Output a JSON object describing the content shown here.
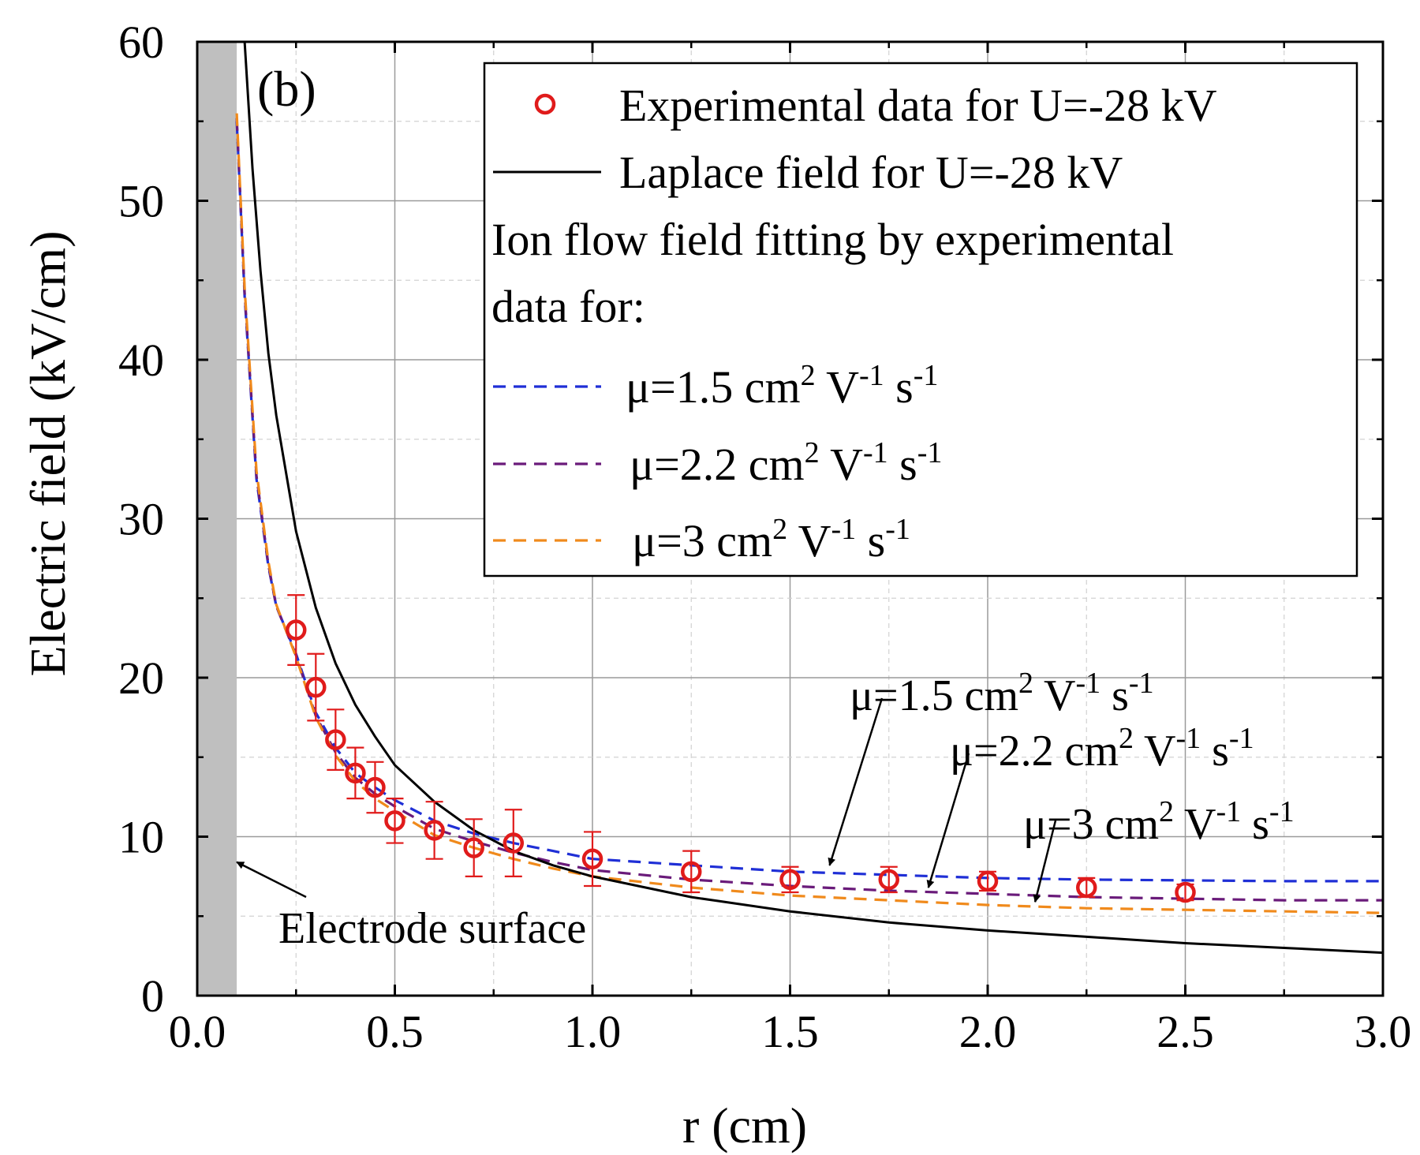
{
  "chart_data": {
    "type": "scatter",
    "panel_label": "(b)",
    "xlabel": "r (cm)",
    "ylabel": "Electric field (kV/cm)",
    "xlim": [
      0,
      3
    ],
    "ylim": [
      0,
      60
    ],
    "xticks": [
      0.0,
      0.5,
      1.0,
      1.5,
      2.0,
      2.5,
      3.0
    ],
    "xtick_labels": [
      "0.0",
      "0.5",
      "1.0",
      "1.5",
      "2.0",
      "2.5",
      "3.0"
    ],
    "yticks": [
      0,
      10,
      20,
      30,
      40,
      50,
      60
    ],
    "ytick_labels": [
      "0",
      "10",
      "20",
      "30",
      "40",
      "50",
      "60"
    ],
    "grid": true,
    "electrode_region": [
      0,
      0.1
    ],
    "experimental": {
      "name": "Experimental data for U=-28 kV",
      "color": "#e01b1b",
      "x": [
        0.25,
        0.3,
        0.35,
        0.4,
        0.45,
        0.5,
        0.6,
        0.7,
        0.8,
        1.0,
        1.25,
        1.5,
        1.75,
        2.0,
        2.25,
        2.5
      ],
      "y": [
        23.0,
        19.4,
        16.1,
        14.0,
        13.1,
        11.0,
        10.4,
        9.3,
        9.6,
        8.6,
        7.8,
        7.3,
        7.3,
        7.2,
        6.8,
        6.5
      ],
      "err": [
        2.2,
        2.1,
        1.9,
        1.6,
        1.6,
        1.4,
        1.8,
        1.8,
        2.1,
        1.7,
        1.3,
        0.8,
        0.8,
        0.6,
        0.6,
        0.5
      ]
    },
    "laplace": {
      "name": "Laplace field for U=-28 kV",
      "color": "#000000",
      "x": [
        0.12,
        0.14,
        0.16,
        0.18,
        0.2,
        0.25,
        0.3,
        0.35,
        0.4,
        0.45,
        0.5,
        0.6,
        0.7,
        0.8,
        0.9,
        1.0,
        1.25,
        1.5,
        1.75,
        2.0,
        2.25,
        2.5,
        2.75,
        3.0
      ],
      "y": [
        60.0,
        52.0,
        45.6,
        40.4,
        36.5,
        29.2,
        24.4,
        20.9,
        18.3,
        16.3,
        14.5,
        12.2,
        10.4,
        9.1,
        8.2,
        7.5,
        6.2,
        5.3,
        4.6,
        4.1,
        3.7,
        3.3,
        3.0,
        2.7
      ]
    },
    "ion_flow_title": [
      "Ion flow field fitting by experimental",
      "data for:"
    ],
    "series": [
      {
        "name": "μ=1.5 cm² V⁻¹ s⁻¹",
        "mu": "1.5",
        "color": "#1f2fd6",
        "x": [
          0.1,
          0.12,
          0.15,
          0.18,
          0.2,
          0.25,
          0.3,
          0.35,
          0.4,
          0.45,
          0.5,
          0.6,
          0.7,
          0.8,
          0.9,
          1.0,
          1.25,
          1.5,
          1.75,
          2.0,
          2.25,
          2.5,
          2.75,
          3.0
        ],
        "y": [
          55.0,
          44.0,
          32.5,
          27.0,
          24.5,
          21.5,
          17.8,
          15.6,
          14.0,
          13.1,
          12.3,
          11.0,
          10.2,
          9.6,
          9.1,
          8.6,
          8.2,
          7.8,
          7.6,
          7.4,
          7.3,
          7.25,
          7.2,
          7.2
        ]
      },
      {
        "name": "μ=2.2 cm² V⁻¹ s⁻¹",
        "mu": "2.2",
        "color": "#6a1b7a",
        "x": [
          0.1,
          0.12,
          0.15,
          0.18,
          0.2,
          0.25,
          0.3,
          0.35,
          0.4,
          0.45,
          0.5,
          0.6,
          0.7,
          0.8,
          0.9,
          1.0,
          1.25,
          1.5,
          1.75,
          2.0,
          2.25,
          2.5,
          2.75,
          3.0
        ],
        "y": [
          55.2,
          44.2,
          32.7,
          27.1,
          24.5,
          21.4,
          17.6,
          15.3,
          13.7,
          12.7,
          11.9,
          10.5,
          9.7,
          9.0,
          8.4,
          7.9,
          7.3,
          6.9,
          6.6,
          6.4,
          6.2,
          6.1,
          6.0,
          6.0
        ]
      },
      {
        "name": "μ=3 cm² V⁻¹ s⁻¹",
        "mu": "3",
        "color": "#f08a1c",
        "x": [
          0.1,
          0.12,
          0.15,
          0.18,
          0.2,
          0.25,
          0.3,
          0.35,
          0.4,
          0.45,
          0.5,
          0.6,
          0.7,
          0.8,
          0.9,
          1.0,
          1.25,
          1.5,
          1.75,
          2.0,
          2.25,
          2.5,
          2.75,
          3.0
        ],
        "y": [
          55.5,
          44.5,
          33.0,
          27.3,
          24.6,
          21.3,
          17.5,
          15.1,
          13.5,
          12.4,
          11.6,
          10.1,
          9.3,
          8.6,
          8.0,
          7.5,
          6.8,
          6.3,
          6.0,
          5.7,
          5.5,
          5.4,
          5.3,
          5.2
        ]
      }
    ],
    "legend_position": "top-right",
    "annotations": [
      {
        "label": "Electrode surface",
        "points_to": [
          0.1,
          8.4
        ]
      },
      {
        "label": "μ=1.5 cm² V⁻¹ s⁻¹",
        "points_to": [
          1.6,
          7.9
        ]
      },
      {
        "label": "μ=2.2 cm² V⁻¹ s⁻¹",
        "points_to": [
          1.85,
          6.5
        ]
      },
      {
        "label": "μ=3 cm² V⁻¹ s⁻¹",
        "points_to": [
          2.12,
          5.6
        ]
      }
    ]
  }
}
